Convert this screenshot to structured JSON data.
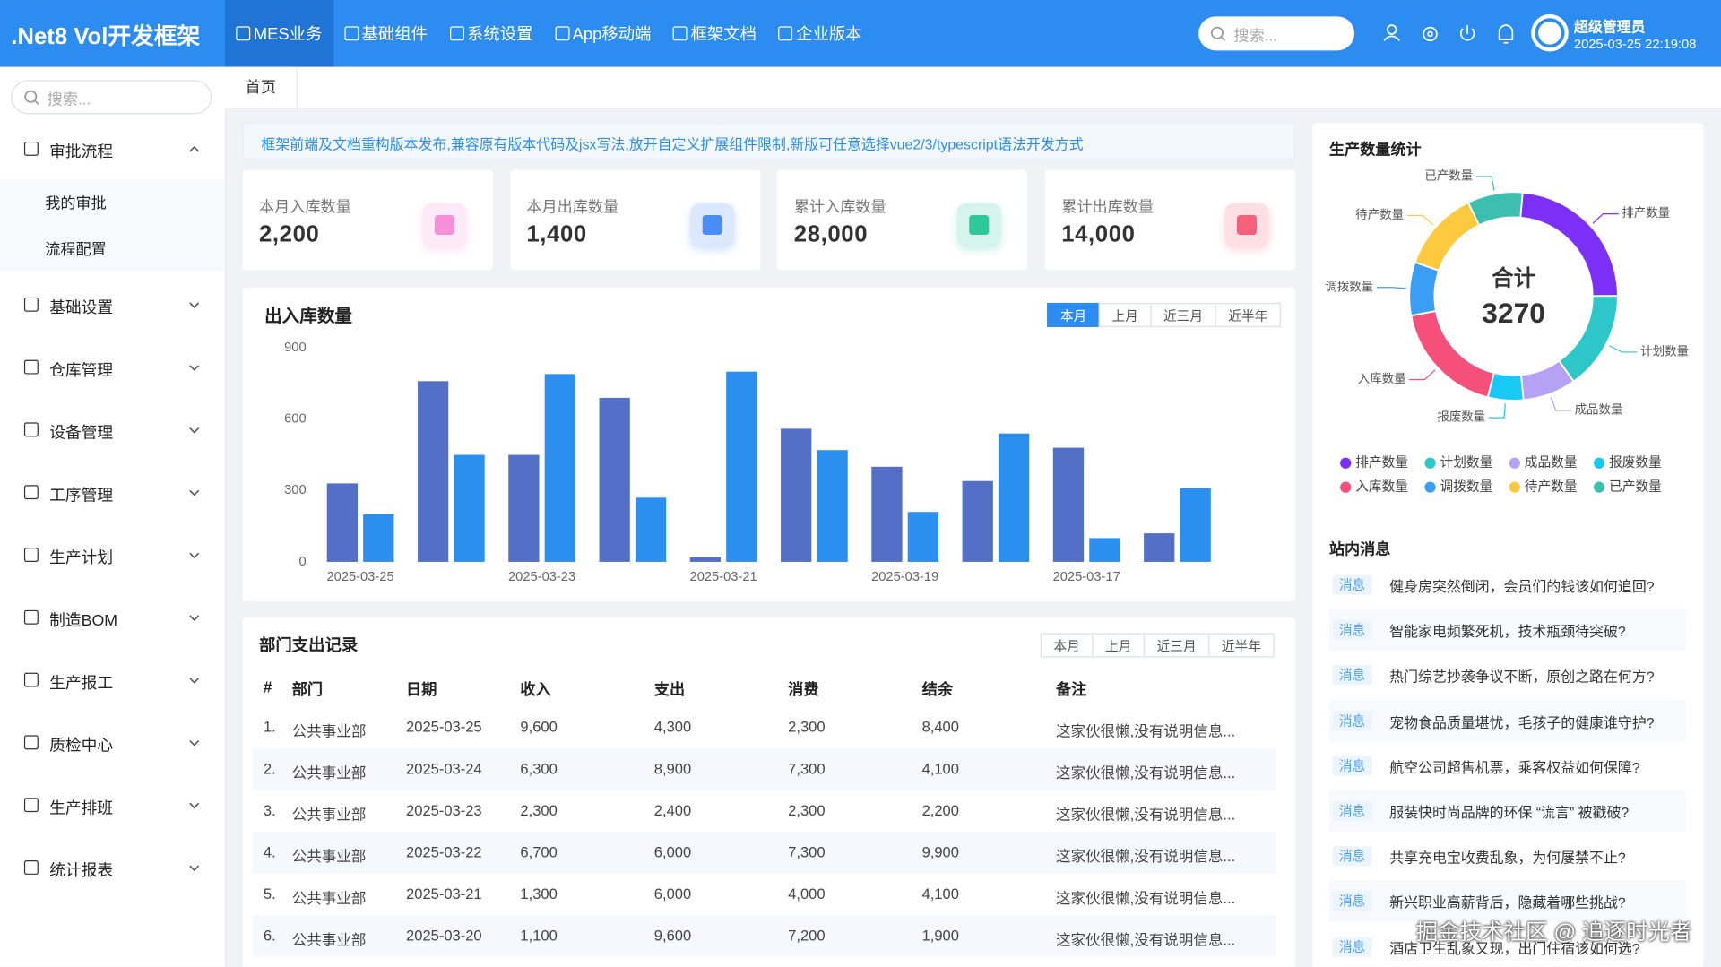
{
  "header": {
    "logo": ".Net8 Vol开发框架",
    "nav": [
      "MES业务",
      "基础组件",
      "系统设置",
      "App移动端",
      "框架文档",
      "企业版本"
    ],
    "search_placeholder": "搜索...",
    "user": "超级管理员",
    "datetime": "2025-03-25 22:19:08"
  },
  "sidebar": {
    "search_placeholder": "搜索...",
    "menu": [
      {
        "label": "审批流程",
        "children": [
          "我的审批",
          "流程配置"
        ]
      },
      {
        "label": "基础设置"
      },
      {
        "label": "仓库管理"
      },
      {
        "label": "设备管理"
      },
      {
        "label": "工序管理"
      },
      {
        "label": "生产计划"
      },
      {
        "label": "制造BOM"
      },
      {
        "label": "生产报工"
      },
      {
        "label": "质检中心"
      },
      {
        "label": "生产排班"
      },
      {
        "label": "统计报表"
      }
    ]
  },
  "tabs": [
    "首页"
  ],
  "notice": "框架前端及文档重构版本发布,兼容原有版本代码及jsx写法,放开自定义扩展组件限制,新版可任意选择vue2/3/typescript语法开发方式",
  "stats": [
    {
      "label": "本月入库数量",
      "value": "2,200",
      "color": "#f48fd8"
    },
    {
      "label": "本月出库数量",
      "value": "1,400",
      "color": "#4a8df6"
    },
    {
      "label": "累计入库数量",
      "value": "28,000",
      "color": "#2fc79b"
    },
    {
      "label": "累计出库数量",
      "value": "14,000",
      "color": "#f5607a"
    }
  ],
  "chart_data": [
    {
      "type": "bar",
      "title": "出入库数量",
      "filters": [
        "本月",
        "上月",
        "近三月",
        "近半年"
      ],
      "categories": [
        "2025-03-25",
        null,
        "2025-03-23",
        null,
        "2025-03-21",
        null,
        "2025-03-19",
        null,
        "2025-03-17",
        null
      ],
      "series": [
        {
          "color": "#5470c6",
          "values": [
            330,
            760,
            450,
            690,
            20,
            560,
            400,
            340,
            480,
            120
          ]
        },
        {
          "color": "#2b8ff0",
          "values": [
            200,
            450,
            790,
            270,
            800,
            470,
            210,
            540,
            100,
            310
          ]
        }
      ],
      "ylim": [
        0,
        900
      ],
      "yticks": [
        0,
        300,
        600,
        900
      ],
      "grid": false
    },
    {
      "type": "pie",
      "title": "生产数量统计",
      "center_label": "合计",
      "total": 3270,
      "categories": [
        "排产数量",
        "计划数量",
        "成品数量",
        "报废数量",
        "入库数量",
        "调拨数量",
        "待产数量",
        "已产数量"
      ],
      "values": [
        770,
        500,
        270,
        180,
        590,
        270,
        410,
        280
      ],
      "colors": [
        "#7b2ff7",
        "#2ec7c9",
        "#b6a2f5",
        "#19c9f5",
        "#f5507a",
        "#3a9ef5",
        "#fdc93f",
        "#3dbfb0"
      ]
    }
  ],
  "table": {
    "title": "部门支出记录",
    "filters": [
      "本月",
      "上月",
      "近三月",
      "近半年"
    ],
    "columns": [
      "#",
      "部门",
      "日期",
      "收入",
      "支出",
      "消费",
      "结余",
      "备注"
    ],
    "rows": [
      [
        "1.",
        "公共事业部",
        "2025-03-25",
        "9,600",
        "4,300",
        "2,300",
        "8,400",
        "这家伙很懒,没有说明信息..."
      ],
      [
        "2.",
        "公共事业部",
        "2025-03-24",
        "6,300",
        "8,900",
        "7,300",
        "4,100",
        "这家伙很懒,没有说明信息..."
      ],
      [
        "3.",
        "公共事业部",
        "2025-03-23",
        "2,300",
        "2,400",
        "2,300",
        "2,200",
        "这家伙很懒,没有说明信息..."
      ],
      [
        "4.",
        "公共事业部",
        "2025-03-22",
        "6,700",
        "6,000",
        "7,300",
        "9,900",
        "这家伙很懒,没有说明信息..."
      ],
      [
        "5.",
        "公共事业部",
        "2025-03-21",
        "1,300",
        "6,000",
        "4,000",
        "4,100",
        "这家伙很懒,没有说明信息..."
      ],
      [
        "6.",
        "公共事业部",
        "2025-03-20",
        "1,100",
        "9,600",
        "7,200",
        "1,900",
        "这家伙很懒,没有说明信息..."
      ]
    ]
  },
  "messages": {
    "title": "站内消息",
    "items": [
      {
        "tag": "消息",
        "text": "健身房突然倒闭，会员们的钱该如何追回?"
      },
      {
        "tag": "消息",
        "text": "智能家电频繁死机，技术瓶颈待突破?"
      },
      {
        "tag": "消息",
        "text": "热门综艺抄袭争议不断，原创之路在何方?"
      },
      {
        "tag": "消息",
        "text": "宠物食品质量堪忧，毛孩子的健康谁守护?"
      },
      {
        "tag": "消息",
        "text": "航空公司超售机票，乘客权益如何保障?"
      },
      {
        "tag": "消息",
        "text": "服装快时尚品牌的环保 “谎言” 被戳破?"
      },
      {
        "tag": "消息",
        "text": "共享充电宝收费乱象，为何屡禁不止?"
      },
      {
        "tag": "消息",
        "text": "新兴职业高薪背后，隐藏着哪些挑战?"
      },
      {
        "tag": "消息",
        "text": "酒店卫生乱象又现，出门住宿该如何选?"
      }
    ]
  },
  "watermark": "掘金技术社区 @ 追逐时光者"
}
